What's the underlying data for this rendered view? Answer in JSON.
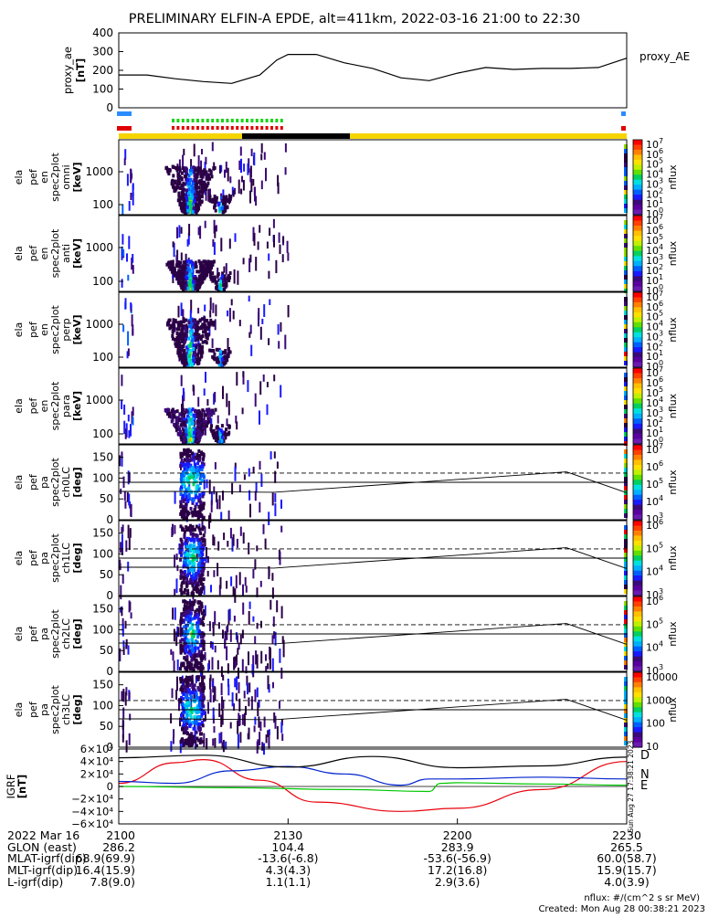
{
  "title": "PRELIMINARY ELFIN-A EPDE, alt=411km, 2022-03-16 21:00 to 22:30",
  "proxy_ae": {
    "panel_label": "proxy_ae",
    "unit": "[nT]",
    "legend": "proxy_AE",
    "ylim": [
      0,
      400
    ],
    "ticks": [
      "400",
      "300",
      "200",
      "100",
      "0"
    ],
    "tick_values": [
      400,
      300,
      200,
      100,
      0
    ]
  },
  "spectrogram_panels": [
    {
      "lines": [
        "ela",
        "pef",
        "en",
        "spec2plot",
        "omni"
      ],
      "unit": "[keV]",
      "ticks": [
        "1000",
        "100"
      ],
      "cbar_ticks": [
        "10",
        "10",
        "10",
        "10",
        "10",
        "10",
        "10",
        "10"
      ],
      "cbar_exp": [
        "7",
        "6",
        "5",
        "4",
        "3",
        "2",
        "1",
        "0"
      ],
      "cbar_label": "nflux"
    },
    {
      "lines": [
        "ela",
        "pef",
        "en",
        "spec2plot",
        "anti"
      ],
      "unit": "[keV]",
      "ticks": [
        "1000",
        "100"
      ],
      "cbar_ticks": [
        "10",
        "10",
        "10",
        "10",
        "10",
        "10",
        "10",
        "10"
      ],
      "cbar_exp": [
        "7",
        "6",
        "5",
        "4",
        "3",
        "2",
        "1",
        "0"
      ],
      "cbar_label": "nflux"
    },
    {
      "lines": [
        "ela",
        "pef",
        "en",
        "spec2plot",
        "perp"
      ],
      "unit": "[keV]",
      "ticks": [
        "1000",
        "100"
      ],
      "cbar_ticks": [
        "10",
        "10",
        "10",
        "10",
        "10",
        "10",
        "10",
        "10"
      ],
      "cbar_exp": [
        "7",
        "6",
        "5",
        "4",
        "3",
        "2",
        "1",
        "0"
      ],
      "cbar_label": "nflux"
    },
    {
      "lines": [
        "ela",
        "pef",
        "en",
        "spec2plot",
        "para"
      ],
      "unit": "[keV]",
      "ticks": [
        "1000",
        "100"
      ],
      "cbar_ticks": [
        "10",
        "10",
        "10",
        "10",
        "10",
        "10",
        "10",
        "10"
      ],
      "cbar_exp": [
        "7",
        "6",
        "5",
        "4",
        "3",
        "2",
        "1",
        "0"
      ],
      "cbar_label": "nflux"
    }
  ],
  "pitch_panels": [
    {
      "lines": [
        "ela",
        "pef",
        "pa",
        "spec2plot",
        "ch0LC"
      ],
      "unit": "[deg]",
      "ticks": [
        "150",
        "100",
        "50",
        "0"
      ],
      "cbar_ticks": [
        "10",
        "10",
        "10",
        "10",
        "10"
      ],
      "cbar_exp": [
        "7",
        "6",
        "5",
        "4",
        "3"
      ],
      "cbar_label": "nflux"
    },
    {
      "lines": [
        "ela",
        "pef",
        "pa",
        "spec2plot",
        "ch1LC"
      ],
      "unit": "[deg]",
      "ticks": [
        "150",
        "100",
        "50",
        "0"
      ],
      "cbar_ticks": [
        "10",
        "10",
        "10",
        "10"
      ],
      "cbar_exp": [
        "6",
        "5",
        "4",
        "3"
      ],
      "cbar_label": "nflux"
    },
    {
      "lines": [
        "ela",
        "pef",
        "pa",
        "spec2plot",
        "ch2LC"
      ],
      "unit": "[deg]",
      "ticks": [
        "150",
        "100",
        "50",
        "0"
      ],
      "cbar_ticks": [
        "10",
        "10",
        "10",
        "10"
      ],
      "cbar_exp": [
        "6",
        "5",
        "4",
        "3"
      ],
      "cbar_label": "nflux"
    },
    {
      "lines": [
        "ela",
        "pef",
        "pa",
        "spec2plot",
        "ch3LC"
      ],
      "unit": "[deg]",
      "ticks": [
        "150",
        "100",
        "50",
        "0"
      ],
      "cbar_ticks": [
        "10000",
        "1000",
        "100",
        "10"
      ],
      "cbar_exp": [
        "",
        "",
        "",
        ""
      ],
      "cbar_label": "nflux"
    }
  ],
  "igrf": {
    "lines": [
      "IGRF",
      "[nT]"
    ],
    "ticks": [
      "6×10⁴",
      "4×10⁴",
      "2×10⁴",
      "0",
      "−2×10⁴",
      "−4×10⁴",
      "−6×10⁴"
    ],
    "tick_values": [
      60000,
      40000,
      20000,
      0,
      -20000,
      -40000,
      -60000
    ],
    "ylim": [
      -60000,
      60000
    ],
    "legend": [
      "D",
      "N",
      "E"
    ],
    "colors": {
      "D": "#e8000b",
      "N": "#0022cc",
      "E": "#00c800",
      "total": "#000000"
    },
    "side_note": "Sun Aug 27 17:38:21 2023"
  },
  "xaxis": {
    "ticks": [
      "2100",
      "2130",
      "2200",
      "2230"
    ],
    "rows": [
      {
        "label": "2022 Mar 16",
        "values": [
          "2100",
          "2130",
          "2200",
          "2230"
        ]
      },
      {
        "label": "GLON (east)",
        "values": [
          "286.2",
          "104.4",
          "283.9",
          "265.5"
        ]
      },
      {
        "label": "MLAT-igrf(dip)",
        "values": [
          "68.9(69.9)",
          "-13.6(-6.8)",
          "-53.6(-56.9)",
          "60.0(58.7)"
        ]
      },
      {
        "label": "MLT-igrf(dip)",
        "values": [
          "16.4(15.9)",
          "4.3(4.3)",
          "17.2(16.8)",
          "15.9(15.7)"
        ]
      },
      {
        "label": "L-igrf(dip)",
        "values": [
          "7.8(9.0)",
          "1.1(1.1)",
          "2.9(3.6)",
          "4.0(3.9)"
        ]
      }
    ]
  },
  "footer": [
    "nflux: #/(cm^2 s sr MeV)",
    "Created: Mon Aug 28 00:38:21 2023"
  ],
  "colors": {
    "bar_yellow": "#f5d400",
    "bar_black": "#000000",
    "bar_red": "#e00000",
    "bar_green": "#19d319",
    "bar_blue": "#2a8cff"
  },
  "chart_data": {
    "type": "line",
    "x_unit": "UT (hhmm)",
    "proxy_ae": {
      "x": [
        "2100",
        "2105",
        "2110",
        "2115",
        "2120",
        "2125",
        "2128",
        "2130",
        "2135",
        "2140",
        "2145",
        "2150",
        "2155",
        "2200",
        "2205",
        "2210",
        "2215",
        "2220",
        "2225",
        "2230"
      ],
      "values": [
        175,
        175,
        155,
        140,
        130,
        175,
        255,
        285,
        285,
        240,
        210,
        160,
        145,
        185,
        215,
        205,
        210,
        210,
        215,
        265
      ]
    },
    "pitch_angle_lines_deg": {
      "dashed": 112,
      "solid": 90,
      "lower": 68
    },
    "igrf_series": [
      {
        "name": "D",
        "x": [
          "2100",
          "2110",
          "2115",
          "2125",
          "2135",
          "2150",
          "2200",
          "2215",
          "2230"
        ],
        "values": [
          5000,
          38000,
          43000,
          10000,
          -25000,
          -40000,
          -35000,
          -5000,
          40000
        ]
      },
      {
        "name": "N",
        "x": [
          "2100",
          "2110",
          "2120",
          "2130",
          "2140",
          "2150",
          "2155",
          "2200",
          "2215",
          "2230"
        ],
        "values": [
          8000,
          5000,
          25000,
          32000,
          20000,
          2000,
          12000,
          12000,
          15000,
          12000
        ]
      },
      {
        "name": "E",
        "x": [
          "2100",
          "2120",
          "2140",
          "2155",
          "2157",
          "2200",
          "2215",
          "2230"
        ],
        "values": [
          0,
          -2000,
          -5000,
          -8000,
          5000,
          6000,
          4000,
          2000
        ]
      },
      {
        "name": "total",
        "x": [
          "2100",
          "2115",
          "2130",
          "2145",
          "2200",
          "2215",
          "2230"
        ],
        "values": [
          46000,
          50000,
          31000,
          48000,
          30000,
          33000,
          47000
        ]
      }
    ]
  }
}
